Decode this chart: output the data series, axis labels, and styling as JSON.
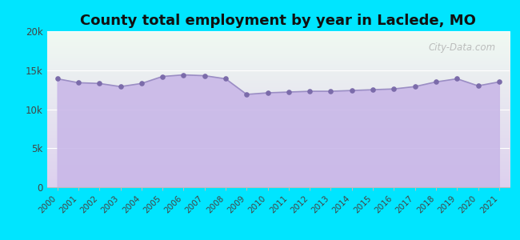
{
  "title": "County total employment by year in Laclede, MO",
  "years": [
    2000,
    2001,
    2002,
    2003,
    2004,
    2005,
    2006,
    2007,
    2008,
    2009,
    2010,
    2011,
    2012,
    2013,
    2014,
    2015,
    2016,
    2017,
    2018,
    2019,
    2020,
    2021
  ],
  "values": [
    13900,
    13400,
    13300,
    12900,
    13300,
    14200,
    14400,
    14300,
    13900,
    11900,
    12100,
    12200,
    12300,
    12300,
    12400,
    12500,
    12600,
    12900,
    13500,
    13900,
    13000,
    13500
  ],
  "line_color": "#9b8ec4",
  "fill_color": "#c9b8e8",
  "fill_alpha": 0.9,
  "marker_color": "#7b6baa",
  "background_color": "#00e5ff",
  "plot_bg_top": "#f0faf2",
  "plot_bg_bottom": "#ddd0ee",
  "ylim": [
    0,
    20000
  ],
  "yticks": [
    0,
    5000,
    10000,
    15000,
    20000
  ],
  "ytick_labels": [
    "0",
    "5k",
    "10k",
    "15k",
    "20k"
  ],
  "title_fontsize": 13,
  "watermark": "City-Data.com"
}
